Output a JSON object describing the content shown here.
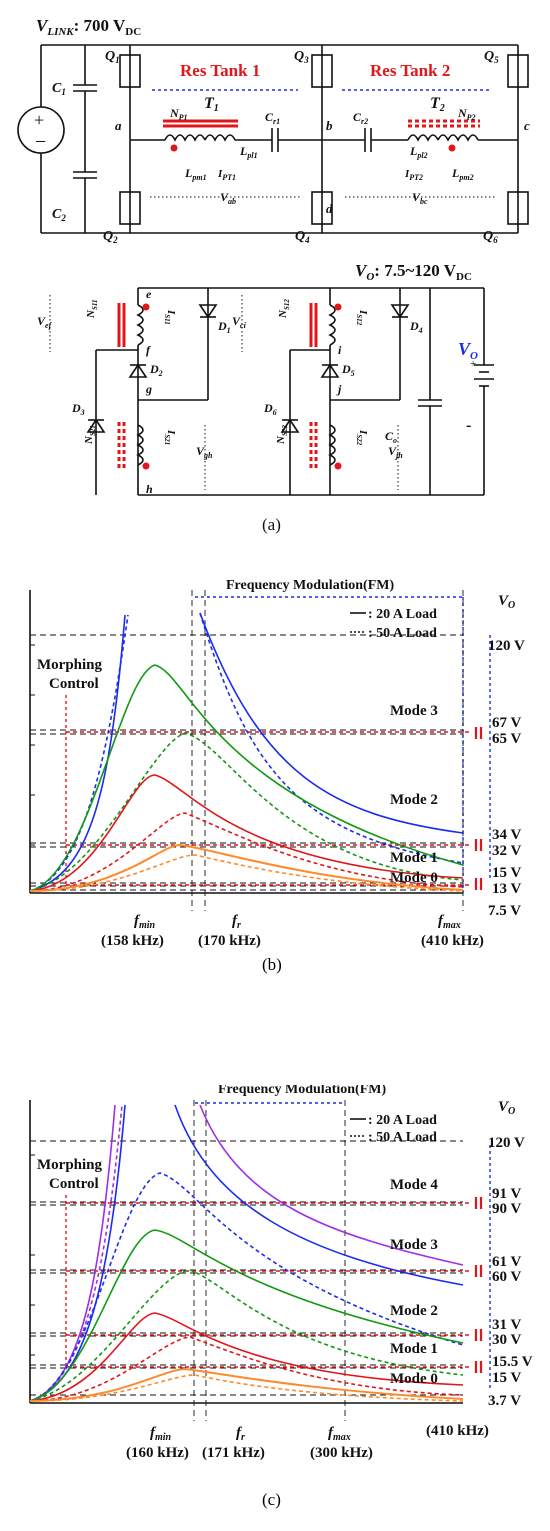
{
  "circuit": {
    "vlink_label": "V",
    "vlink_sub": "LINK",
    "vlink_value": ": 700 V",
    "vlink_unit_sub": "DC",
    "vo_label": "V",
    "vo_sub": "O",
    "vo_value": ": 7.5~120 V",
    "vo_unit_sub": "DC",
    "res_tank_1": "Res Tank 1",
    "res_tank_2": "Res Tank 2",
    "transformer_1": "T1",
    "transformer_2": "T2",
    "switches": [
      "Q1",
      "Q3",
      "Q5",
      "Q2",
      "Q4",
      "Q6"
    ],
    "capacitors": [
      "C1",
      "C2",
      "Cr1",
      "Cr2",
      "Co"
    ],
    "nodes": [
      "a",
      "b",
      "c",
      "d",
      "e",
      "f",
      "g",
      "h",
      "i",
      "j"
    ],
    "inductors": [
      "Lpl1",
      "Lpm1",
      "Lpl2",
      "Lpm2"
    ],
    "windings": [
      "NP1",
      "NP2",
      "NS11",
      "NS21",
      "NS12",
      "NS22"
    ],
    "diodes": [
      "D1",
      "D2",
      "D3",
      "D4",
      "D5",
      "D6"
    ],
    "currents": [
      "IPT1",
      "IPT2",
      "IS11",
      "IS21",
      "IS12",
      "IS22"
    ],
    "voltages": [
      "Vab",
      "Vbc",
      "Vef",
      "Vgh",
      "Vci",
      "Vjh"
    ],
    "battery_label": "VO",
    "caption": "(a)"
  },
  "charts": [
    {
      "caption": "(b)",
      "fm_label": "Frequency Modulation(FM)",
      "vo_axis_label": "VO",
      "legend": [
        ": 20 A Load",
        ": 50 A Load"
      ],
      "morphing_label": [
        "Morphing",
        "Control"
      ],
      "modes": [
        "Mode 3",
        "Mode 2",
        "Mode 1",
        "Mode 0"
      ],
      "voltage_levels": [
        "120 V",
        "67 V",
        "65 V",
        "34 V",
        "32 V",
        "15 V",
        "13 V",
        "7.5 V"
      ],
      "freq_labels": [
        "fmin",
        "fr",
        "fmax"
      ],
      "freq_values": [
        "(158 kHz)",
        "(170 kHz)",
        "(410 kHz)"
      ]
    },
    {
      "caption": "(c)",
      "fm_label": "Frequency Modulation(FM)",
      "vo_axis_label": "VO",
      "legend": [
        ": 20 A Load",
        ": 50 A Load"
      ],
      "morphing_label": [
        "Morphing",
        "Control"
      ],
      "modes": [
        "Mode 4",
        "Mode 3",
        "Mode 2",
        "Mode 1",
        "Mode 0"
      ],
      "voltage_levels": [
        "120 V",
        "91 V",
        "90 V",
        "61 V",
        "60 V",
        "31 V",
        "30 V",
        "15.5 V",
        "15 V",
        "3.7 V"
      ],
      "freq_labels": [
        "fmin",
        "fr",
        "fmax"
      ],
      "freq_values": [
        "(160 kHz)",
        "(171 kHz)",
        "(300 kHz)",
        "(410 kHz)"
      ]
    }
  ]
}
